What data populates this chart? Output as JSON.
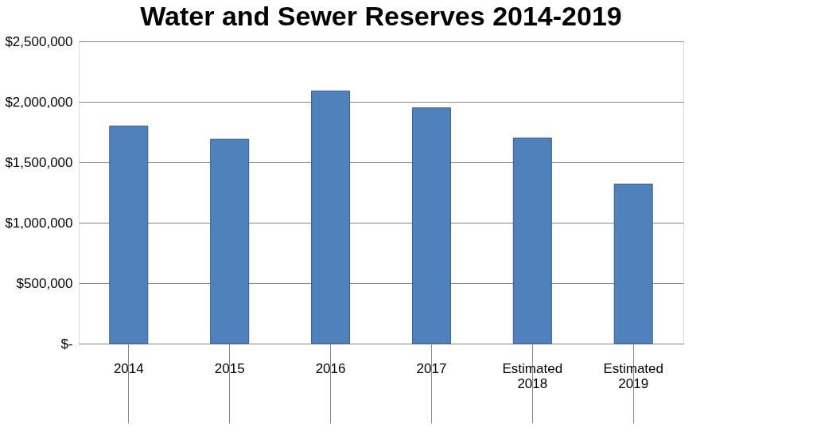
{
  "chart_data": {
    "type": "bar",
    "title": "Water and Sewer Reserves 2014-2019",
    "categories": [
      "2014",
      "2015",
      "2016",
      "2017",
      "Estimated 2018",
      "Estimated 2019"
    ],
    "values": [
      1800000,
      1690000,
      2090000,
      1950000,
      1700000,
      1320000
    ],
    "color": "#4f81bd",
    "ylim": [
      0,
      2500000
    ],
    "yticks": [
      {
        "value": 0,
        "label": "$-"
      },
      {
        "value": 500000,
        "label": "$500,000"
      },
      {
        "value": 1000000,
        "label": "$1,000,000"
      },
      {
        "value": 1500000,
        "label": "$1,500,000"
      },
      {
        "value": 2000000,
        "label": "$2,000,000"
      },
      {
        "value": 2500000,
        "label": "$2,500,000"
      }
    ],
    "grid": "y"
  }
}
